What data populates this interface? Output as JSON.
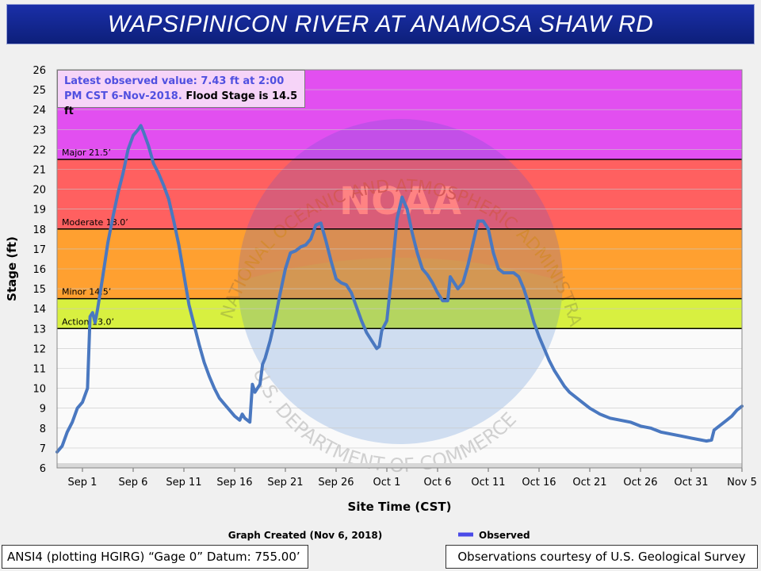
{
  "title": "WAPSIPINICON RIVER AT ANAMOSA SHAW RD",
  "info": {
    "latest": "Latest observed value: 7.43 ft at 2:00 PM CST 6-Nov-2018.",
    "flood": "Flood Stage is 14.5 ft"
  },
  "footer": {
    "created": "Graph Created (Nov 6, 2018)",
    "legend": "Observed",
    "datum": "ANSI4 (plotting HGIRG) “Gage 0” Datum: 755.00’",
    "courtesy": "Observations courtesy of U.S. Geological Survey"
  },
  "watermark": {
    "outer": "NATIONAL OCEANIC AND ATMOSPHERIC ADMINISTRATION",
    "inner": "U.S. DEPARTMENT OF COMMERCE",
    "logo": "NOAA"
  },
  "colors": {
    "major": "#e24ff0",
    "moderate": "#ff6060",
    "minor": "#ffa030",
    "action": "#d8f040",
    "line": "#4a78c0",
    "legend": "#4a4ae8"
  },
  "chart_data": {
    "type": "line",
    "xlabel": "Site Time (CST)",
    "ylabel": "Stage (ft)",
    "ylim": [
      6,
      26
    ],
    "xlim": [
      "2018-08-29 12:00",
      "2018-11-05 00:00"
    ],
    "yticks": [
      6,
      7,
      8,
      9,
      10,
      11,
      12,
      13,
      14,
      15,
      16,
      17,
      18,
      19,
      20,
      21,
      22,
      23,
      24,
      25,
      26
    ],
    "xticks": [
      {
        "label": "Sep 1",
        "date": "2018-09-01"
      },
      {
        "label": "Sep 6",
        "date": "2018-09-06"
      },
      {
        "label": "Sep 11",
        "date": "2018-09-11"
      },
      {
        "label": "Sep 16",
        "date": "2018-09-16"
      },
      {
        "label": "Sep 21",
        "date": "2018-09-21"
      },
      {
        "label": "Sep 26",
        "date": "2018-09-26"
      },
      {
        "label": "Oct 1",
        "date": "2018-10-01"
      },
      {
        "label": "Oct 6",
        "date": "2018-10-06"
      },
      {
        "label": "Oct 11",
        "date": "2018-10-11"
      },
      {
        "label": "Oct 16",
        "date": "2018-10-16"
      },
      {
        "label": "Oct 21",
        "date": "2018-10-21"
      },
      {
        "label": "Oct 26",
        "date": "2018-10-26"
      },
      {
        "label": "Oct 31",
        "date": "2018-10-31"
      },
      {
        "label": "Nov 5",
        "date": "2018-11-05"
      }
    ],
    "flood_categories": [
      {
        "name": "Major",
        "label": "Major 21.5’",
        "from": 21.5,
        "to": 26
      },
      {
        "name": "Moderate",
        "label": "Moderate 18.0’",
        "from": 18.0,
        "to": 21.5
      },
      {
        "name": "Minor",
        "label": "Minor 14.5’",
        "from": 14.5,
        "to": 18.0
      },
      {
        "name": "Action",
        "label": "Action 13.0’",
        "from": 13.0,
        "to": 14.5
      }
    ],
    "series": [
      {
        "name": "Observed",
        "points": [
          [
            "2018-08-29 12:00",
            6.8
          ],
          [
            "2018-08-30 00:00",
            7.1
          ],
          [
            "2018-08-30 12:00",
            7.8
          ],
          [
            "2018-08-31 00:00",
            8.3
          ],
          [
            "2018-08-31 12:00",
            9.0
          ],
          [
            "2018-09-01 00:00",
            9.3
          ],
          [
            "2018-09-01 12:00",
            10.0
          ],
          [
            "2018-09-01 18:00",
            13.6
          ],
          [
            "2018-09-02 00:00",
            13.8
          ],
          [
            "2018-09-02 06:00",
            13.3
          ],
          [
            "2018-09-02 12:00",
            14.0
          ],
          [
            "2018-09-03 00:00",
            15.6
          ],
          [
            "2018-09-03 12:00",
            17.3
          ],
          [
            "2018-09-04 00:00",
            18.6
          ],
          [
            "2018-09-04 12:00",
            19.8
          ],
          [
            "2018-09-05 00:00",
            20.8
          ],
          [
            "2018-09-05 12:00",
            22.0
          ],
          [
            "2018-09-06 00:00",
            22.7
          ],
          [
            "2018-09-06 12:00",
            23.0
          ],
          [
            "2018-09-06 18:00",
            23.2
          ],
          [
            "2018-09-07 00:00",
            22.9
          ],
          [
            "2018-09-07 12:00",
            22.2
          ],
          [
            "2018-09-08 00:00",
            21.3
          ],
          [
            "2018-09-08 12:00",
            20.8
          ],
          [
            "2018-09-09 00:00",
            20.2
          ],
          [
            "2018-09-09 12:00",
            19.5
          ],
          [
            "2018-09-10 00:00",
            18.4
          ],
          [
            "2018-09-10 12:00",
            17.2
          ],
          [
            "2018-09-11 00:00",
            15.7
          ],
          [
            "2018-09-11 12:00",
            14.2
          ],
          [
            "2018-09-12 00:00",
            13.2
          ],
          [
            "2018-09-12 12:00",
            12.2
          ],
          [
            "2018-09-13 00:00",
            11.3
          ],
          [
            "2018-09-13 12:00",
            10.6
          ],
          [
            "2018-09-14 00:00",
            10.0
          ],
          [
            "2018-09-14 12:00",
            9.5
          ],
          [
            "2018-09-15 00:00",
            9.2
          ],
          [
            "2018-09-15 12:00",
            8.9
          ],
          [
            "2018-09-16 00:00",
            8.6
          ],
          [
            "2018-09-16 12:00",
            8.4
          ],
          [
            "2018-09-16 18:00",
            8.7
          ],
          [
            "2018-09-17 00:00",
            8.5
          ],
          [
            "2018-09-17 12:00",
            8.3
          ],
          [
            "2018-09-17 18:00",
            10.2
          ],
          [
            "2018-09-18 00:00",
            9.8
          ],
          [
            "2018-09-18 12:00",
            10.2
          ],
          [
            "2018-09-18 18:00",
            11.2
          ],
          [
            "2018-09-19 00:00",
            11.5
          ],
          [
            "2018-09-19 12:00",
            12.4
          ],
          [
            "2018-09-20 00:00",
            13.5
          ],
          [
            "2018-09-20 12:00",
            14.8
          ],
          [
            "2018-09-21 00:00",
            16.0
          ],
          [
            "2018-09-21 12:00",
            16.8
          ],
          [
            "2018-09-22 00:00",
            16.9
          ],
          [
            "2018-09-22 12:00",
            17.1
          ],
          [
            "2018-09-23 00:00",
            17.2
          ],
          [
            "2018-09-23 12:00",
            17.5
          ],
          [
            "2018-09-24 00:00",
            18.2
          ],
          [
            "2018-09-24 12:00",
            18.3
          ],
          [
            "2018-09-25 00:00",
            17.4
          ],
          [
            "2018-09-25 12:00",
            16.4
          ],
          [
            "2018-09-26 00:00",
            15.5
          ],
          [
            "2018-09-26 12:00",
            15.3
          ],
          [
            "2018-09-27 00:00",
            15.2
          ],
          [
            "2018-09-27 12:00",
            14.8
          ],
          [
            "2018-09-28 00:00",
            14.1
          ],
          [
            "2018-09-28 12:00",
            13.4
          ],
          [
            "2018-09-29 00:00",
            12.8
          ],
          [
            "2018-09-29 12:00",
            12.4
          ],
          [
            "2018-09-30 00:00",
            12.0
          ],
          [
            "2018-09-30 06:00",
            12.1
          ],
          [
            "2018-09-30 12:00",
            12.9
          ],
          [
            "2018-10-01 00:00",
            13.4
          ],
          [
            "2018-10-01 12:00",
            15.8
          ],
          [
            "2018-10-02 00:00",
            18.5
          ],
          [
            "2018-10-02 12:00",
            19.6
          ],
          [
            "2018-10-03 00:00",
            19.0
          ],
          [
            "2018-10-03 12:00",
            17.8
          ],
          [
            "2018-10-04 00:00",
            16.8
          ],
          [
            "2018-10-04 12:00",
            16.0
          ],
          [
            "2018-10-05 00:00",
            15.7
          ],
          [
            "2018-10-05 12:00",
            15.3
          ],
          [
            "2018-10-06 00:00",
            14.8
          ],
          [
            "2018-10-06 12:00",
            14.4
          ],
          [
            "2018-10-07 00:00",
            14.4
          ],
          [
            "2018-10-07 06:00",
            15.6
          ],
          [
            "2018-10-07 12:00",
            15.4
          ],
          [
            "2018-10-08 00:00",
            15.0
          ],
          [
            "2018-10-08 12:00",
            15.3
          ],
          [
            "2018-10-09 00:00",
            16.2
          ],
          [
            "2018-10-09 12:00",
            17.3
          ],
          [
            "2018-10-10 00:00",
            18.4
          ],
          [
            "2018-10-10 12:00",
            18.4
          ],
          [
            "2018-10-11 00:00",
            18.0
          ],
          [
            "2018-10-11 12:00",
            16.8
          ],
          [
            "2018-10-12 00:00",
            16.0
          ],
          [
            "2018-10-12 12:00",
            15.8
          ],
          [
            "2018-10-13 00:00",
            15.8
          ],
          [
            "2018-10-13 12:00",
            15.8
          ],
          [
            "2018-10-14 00:00",
            15.6
          ],
          [
            "2018-10-14 12:00",
            15.0
          ],
          [
            "2018-10-15 00:00",
            14.2
          ],
          [
            "2018-10-15 12:00",
            13.3
          ],
          [
            "2018-10-16 00:00",
            12.6
          ],
          [
            "2018-10-16 12:00",
            12.0
          ],
          [
            "2018-10-17 00:00",
            11.4
          ],
          [
            "2018-10-17 12:00",
            10.9
          ],
          [
            "2018-10-18 00:00",
            10.5
          ],
          [
            "2018-10-18 12:00",
            10.1
          ],
          [
            "2018-10-19 00:00",
            9.8
          ],
          [
            "2018-10-20 00:00",
            9.4
          ],
          [
            "2018-10-21 00:00",
            9.0
          ],
          [
            "2018-10-22 00:00",
            8.7
          ],
          [
            "2018-10-23 00:00",
            8.5
          ],
          [
            "2018-10-24 00:00",
            8.4
          ],
          [
            "2018-10-25 00:00",
            8.3
          ],
          [
            "2018-10-26 00:00",
            8.1
          ],
          [
            "2018-10-27 00:00",
            8.0
          ],
          [
            "2018-10-28 00:00",
            7.8
          ],
          [
            "2018-10-29 00:00",
            7.7
          ],
          [
            "2018-10-30 00:00",
            7.6
          ],
          [
            "2018-10-31 00:00",
            7.5
          ],
          [
            "2018-11-01 00:00",
            7.4
          ],
          [
            "2018-11-01 12:00",
            7.35
          ],
          [
            "2018-11-02 00:00",
            7.4
          ],
          [
            "2018-11-02 06:00",
            7.9
          ],
          [
            "2018-11-02 12:00",
            8.0
          ],
          [
            "2018-11-03 00:00",
            8.2
          ],
          [
            "2018-11-03 12:00",
            8.4
          ],
          [
            "2018-11-04 00:00",
            8.6
          ],
          [
            "2018-11-04 12:00",
            8.9
          ],
          [
            "2018-11-05 00:00",
            9.1
          ]
        ]
      }
    ]
  }
}
